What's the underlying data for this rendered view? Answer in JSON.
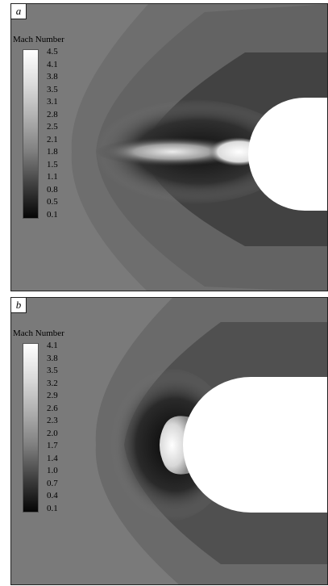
{
  "panels": [
    {
      "tag": "a",
      "legend_title": "Mach Number",
      "ticks": [
        "4.5",
        "4.1",
        "3.8",
        "3.5",
        "3.1",
        "2.8",
        "2.5",
        "2.1",
        "1.8",
        "1.5",
        "1.1",
        "0.8",
        "0.5",
        "0.1"
      ]
    },
    {
      "tag": "b",
      "legend_title": "Mach Number",
      "ticks": [
        "4.1",
        "3.8",
        "3.5",
        "3.2",
        "2.9",
        "2.6",
        "2.3",
        "2.0",
        "1.7",
        "1.4",
        "1.0",
        "0.7",
        "0.4",
        "0.1"
      ]
    }
  ]
}
